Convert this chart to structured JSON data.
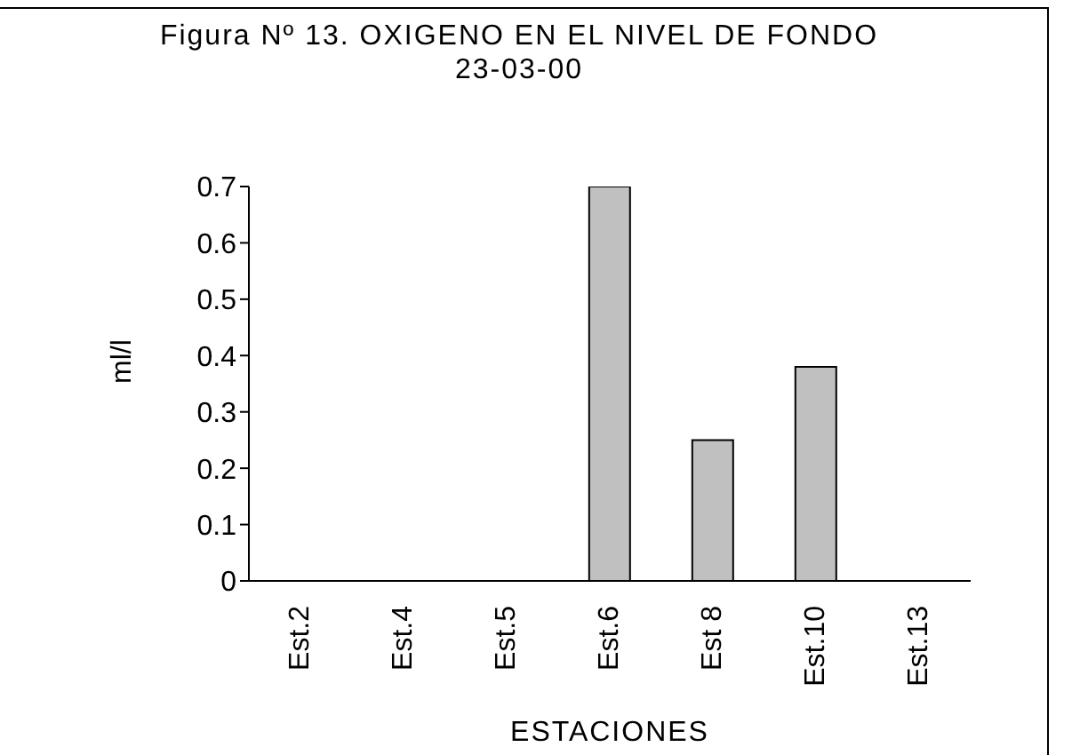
{
  "chart_data": {
    "type": "bar",
    "title": "Figura Nº 13. OXIGENO EN EL NIVEL DE FONDO",
    "subtitle": "23-03-00",
    "xlabel": "ESTACIONES",
    "ylabel": "ml/l",
    "categories": [
      "Est.2",
      "Est.4",
      "Est.5",
      "Est.6",
      "Est 8",
      "Est.10",
      "Est.13"
    ],
    "values": [
      0,
      0,
      0,
      0.7,
      0.25,
      0.38,
      0
    ],
    "color": "#c0c0c0",
    "ylim": [
      0,
      0.7
    ],
    "yticks": [
      0,
      0.1,
      0.2,
      0.3,
      0.4,
      0.5,
      0.6,
      0.7
    ]
  }
}
